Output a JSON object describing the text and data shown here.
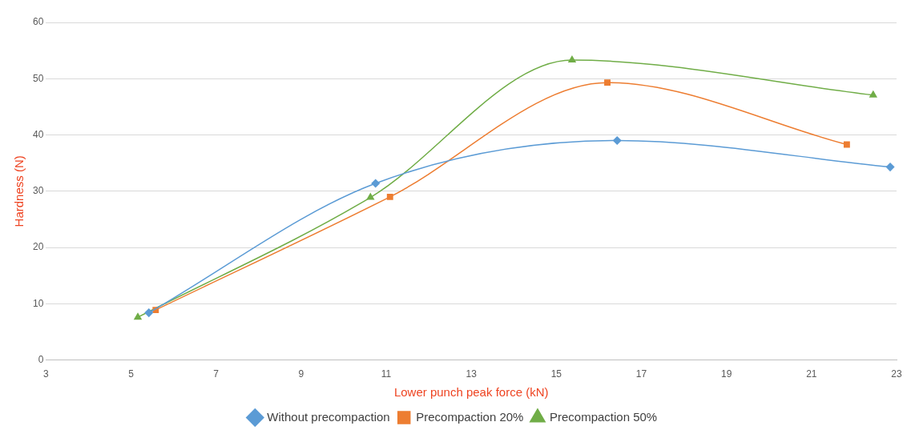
{
  "chart_data": {
    "type": "line",
    "xlabel": "Lower punch peak force (kN)",
    "ylabel": "Hardness (N)",
    "xlim": [
      3,
      23
    ],
    "xticks": [
      3,
      5,
      7,
      9,
      11,
      13,
      15,
      17,
      19,
      21,
      23
    ],
    "ylim": [
      0,
      60
    ],
    "yticks": [
      0,
      10,
      20,
      30,
      40,
      50,
      60
    ],
    "grid": "y",
    "legend": "bottom",
    "series": [
      {
        "name": "Without precompaction",
        "color": "#5b9bd5",
        "marker": "diamond",
        "x": [
          5.42,
          10.75,
          16.43,
          22.85
        ],
        "values": [
          8.4,
          31.4,
          39.0,
          34.3
        ]
      },
      {
        "name": "Precompaction 20%",
        "color": "#ed7d31",
        "marker": "square",
        "x": [
          5.58,
          11.09,
          16.2,
          21.83
        ],
        "values": [
          8.9,
          29.0,
          49.3,
          38.3
        ]
      },
      {
        "name": "Precompaction 50%",
        "color": "#70ad47",
        "marker": "triangle",
        "x": [
          5.16,
          10.63,
          15.37,
          22.45
        ],
        "values": [
          7.6,
          28.9,
          53.3,
          47.1
        ]
      }
    ]
  }
}
